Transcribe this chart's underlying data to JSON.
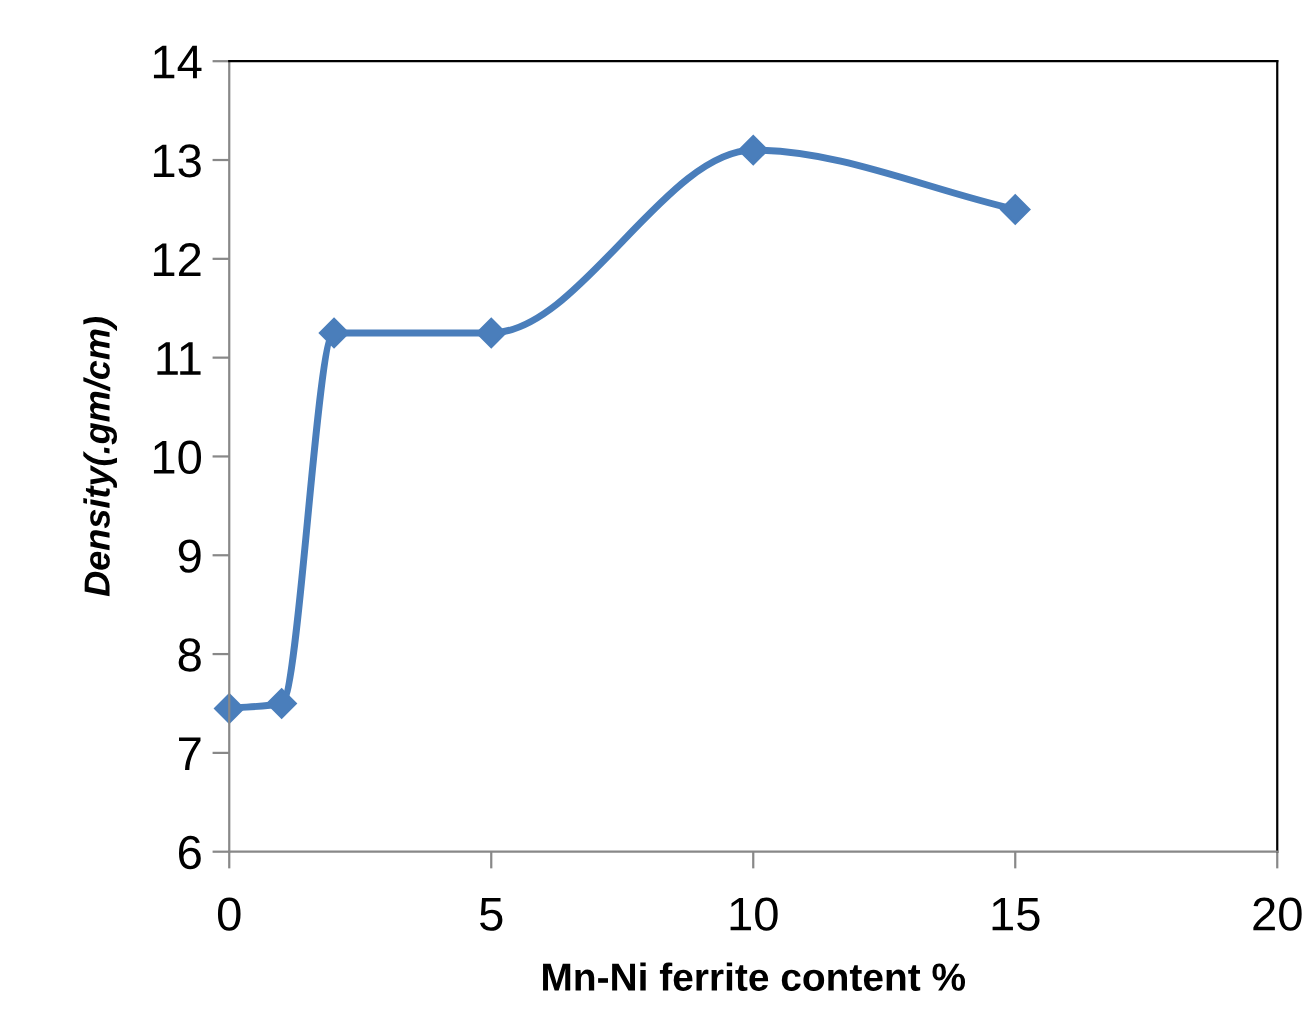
{
  "chart_data": {
    "type": "line",
    "xlabel": "Mn-Ni ferrite content %",
    "ylabel": "Density(.gm/cm)",
    "x": [
      0,
      1,
      2,
      5,
      10,
      15
    ],
    "series": [
      {
        "color": "#4a7ebb",
        "values": [
          7.45,
          7.5,
          11.25,
          11.25,
          13.1,
          12.5
        ]
      }
    ],
    "xlim": [
      0,
      20
    ],
    "xticks": [
      0,
      5,
      10,
      15,
      20
    ],
    "ylim": [
      6,
      14
    ],
    "yticks": [
      6,
      7,
      8,
      9,
      10,
      11,
      12,
      13,
      14
    ],
    "marker": "diamond",
    "line_style": "solid",
    "grid": false,
    "legend": false
  }
}
